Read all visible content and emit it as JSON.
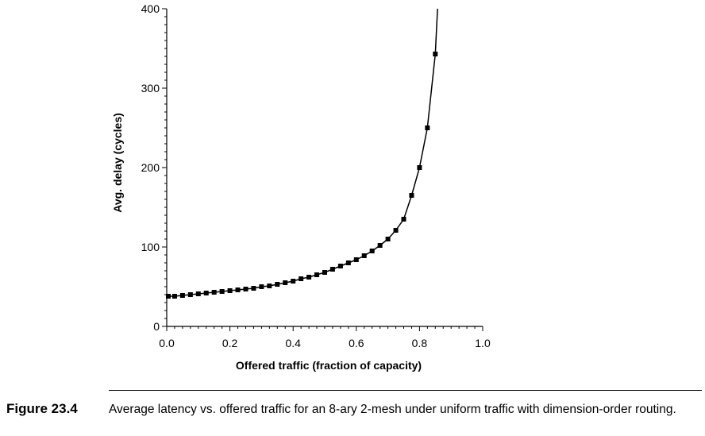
{
  "figure": {
    "label": "Figure 23.4",
    "caption": "Average latency vs. offered traffic for an 8-ary 2-mesh under uniform traffic with dimension-order routing."
  },
  "chart_data": {
    "type": "line",
    "xlabel": "Offered traffic (fraction of capacity)",
    "ylabel": "Avg. delay (cycles)",
    "xlim": [
      0,
      1.0
    ],
    "ylim": [
      0,
      400
    ],
    "x_ticks": [
      "0.0",
      "0.2",
      "0.4",
      "0.6",
      "0.8",
      "1.0"
    ],
    "y_ticks": [
      "0",
      "100",
      "200",
      "300",
      "400"
    ],
    "marker": "square",
    "line_color": "#000000",
    "grid": false,
    "series": [
      {
        "x": [
          0.005,
          0.025,
          0.05,
          0.075,
          0.1,
          0.125,
          0.15,
          0.175,
          0.2,
          0.225,
          0.25,
          0.275,
          0.3,
          0.325,
          0.35,
          0.375,
          0.4,
          0.425,
          0.45,
          0.475,
          0.5,
          0.525,
          0.55,
          0.575,
          0.6,
          0.625,
          0.65,
          0.675,
          0.7,
          0.725,
          0.75,
          0.775,
          0.8,
          0.825,
          0.85
        ],
        "y": [
          38,
          38,
          39,
          40,
          41,
          42,
          43,
          44,
          45,
          46,
          47,
          48,
          50,
          51,
          53,
          55,
          57,
          60,
          62,
          65,
          68,
          72,
          76,
          80,
          84,
          89,
          95,
          102,
          110,
          121,
          135,
          165,
          200,
          250,
          343
        ]
      }
    ],
    "curve_extends_to": {
      "x": 0.857,
      "y": 400
    }
  }
}
